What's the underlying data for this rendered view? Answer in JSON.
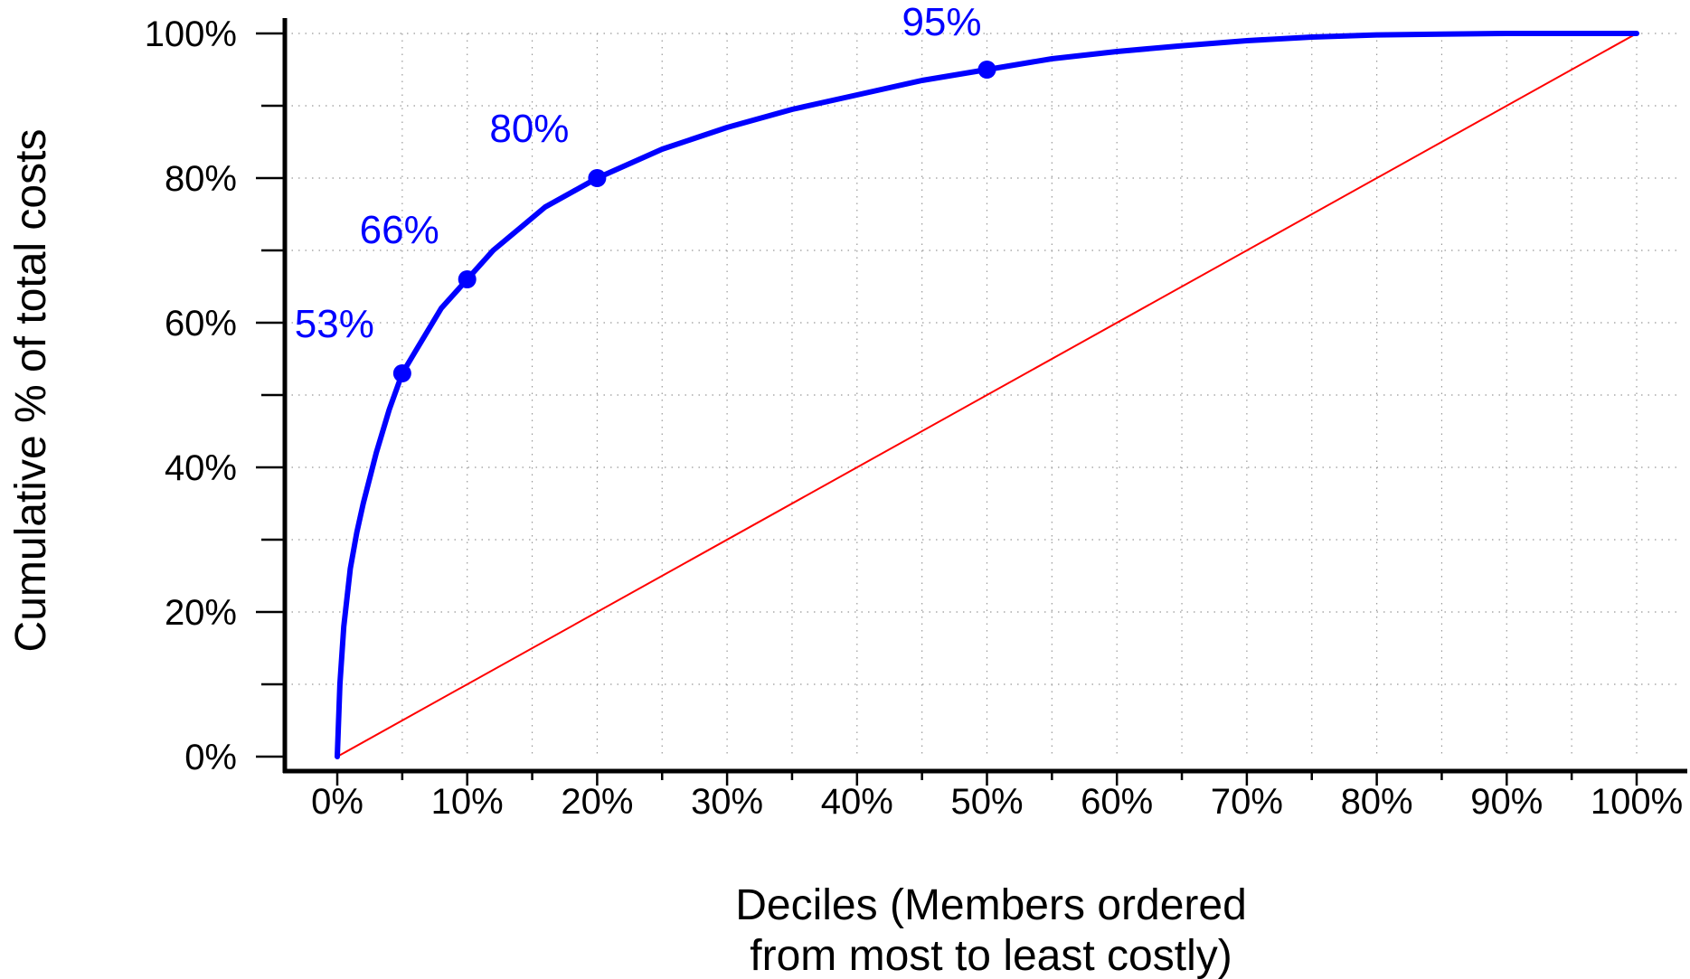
{
  "chart_data": {
    "type": "line",
    "title": "",
    "xlabel_lines": [
      "Deciles (Members ordered",
      "from most to least costly)"
    ],
    "ylabel": "Cumulative % of total costs",
    "xlim": [
      0,
      100
    ],
    "ylim": [
      0,
      100
    ],
    "x_ticks": [
      "0%",
      "10%",
      "20%",
      "30%",
      "40%",
      "50%",
      "60%",
      "70%",
      "80%",
      "90%",
      "100%"
    ],
    "y_ticks": [
      "0%",
      "20%",
      "40%",
      "60%",
      "80%",
      "100%"
    ],
    "grid": true,
    "colors": {
      "curve": "#0000ff",
      "reference": "#ff0000",
      "axis": "#000000",
      "grid": "#999999"
    },
    "series": [
      {
        "key": "cumulative_costs",
        "x": [
          0,
          0.2,
          0.5,
          1,
          1.5,
          2,
          3,
          4,
          5,
          6,
          7,
          8,
          10,
          12,
          14,
          16,
          18,
          20,
          25,
          30,
          35,
          40,
          45,
          50,
          55,
          60,
          65,
          70,
          75,
          80,
          85,
          90,
          95,
          100
        ],
        "y": [
          0,
          10,
          18,
          26,
          31,
          35,
          42,
          48,
          53,
          56,
          59,
          62,
          66,
          70,
          73,
          76,
          78,
          80,
          84,
          87,
          89.5,
          91.5,
          93.5,
          95,
          96.5,
          97.5,
          98.3,
          99,
          99.5,
          99.8,
          99.9,
          100,
          100,
          100
        ]
      },
      {
        "key": "equality_line",
        "x": [
          0,
          100
        ],
        "y": [
          0,
          100
        ]
      }
    ],
    "annotations": [
      {
        "x": 5,
        "y": 53,
        "label": "53%"
      },
      {
        "x": 10,
        "y": 66,
        "label": "66%"
      },
      {
        "x": 20,
        "y": 80,
        "label": "80%"
      },
      {
        "x": 50,
        "y": 95,
        "label": "95%"
      }
    ]
  }
}
